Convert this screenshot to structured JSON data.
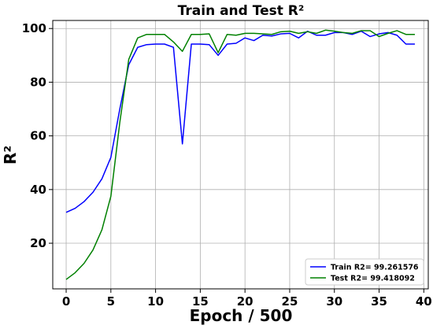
{
  "chart_data": {
    "type": "line",
    "title": "Train and Test R²",
    "xlabel": "Epoch / 500",
    "ylabel": "R²",
    "xlim": [
      -1.5,
      40.5
    ],
    "ylim": [
      3,
      103
    ],
    "xticks": [
      0,
      5,
      10,
      15,
      20,
      25,
      30,
      35,
      40
    ],
    "yticks": [
      20,
      40,
      60,
      80,
      100
    ],
    "grid": true,
    "legend_position": "bottom-right",
    "x": [
      0,
      1,
      2,
      3,
      4,
      5,
      6,
      7,
      8,
      9,
      10,
      11,
      12,
      13,
      14,
      15,
      16,
      17,
      18,
      19,
      20,
      21,
      22,
      23,
      24,
      25,
      26,
      27,
      28,
      29,
      30,
      31,
      32,
      33,
      34,
      35,
      36,
      37,
      38,
      39
    ],
    "series": [
      {
        "name": "Train R2= 99.261576",
        "color": "#0000ff",
        "values": [
          31.5,
          33.0,
          35.5,
          39.0,
          44.0,
          52.0,
          70.0,
          86.5,
          93.0,
          94.0,
          94.2,
          94.2,
          93.0,
          57.0,
          94.2,
          94.2,
          94.0,
          90.0,
          94.2,
          94.5,
          96.5,
          95.5,
          97.5,
          97.2,
          98.0,
          98.2,
          96.5,
          99.0,
          97.5,
          97.5,
          98.5,
          98.5,
          97.8,
          99.0,
          97.0,
          98.0,
          98.5,
          97.5,
          94.2,
          94.2
        ]
      },
      {
        "name": "Test R2= 99.418092",
        "color": "#008000",
        "values": [
          6.5,
          9.0,
          12.5,
          17.5,
          25.0,
          37.5,
          65.0,
          88.5,
          96.5,
          97.8,
          97.8,
          97.8,
          95.0,
          91.5,
          97.8,
          97.8,
          98.0,
          91.0,
          97.8,
          97.5,
          98.2,
          98.2,
          98.0,
          97.8,
          98.8,
          99.0,
          98.2,
          98.8,
          98.2,
          99.4,
          99.0,
          98.5,
          98.2,
          99.2,
          99.2,
          97.0,
          98.2,
          99.2,
          97.8,
          97.8
        ]
      }
    ]
  }
}
